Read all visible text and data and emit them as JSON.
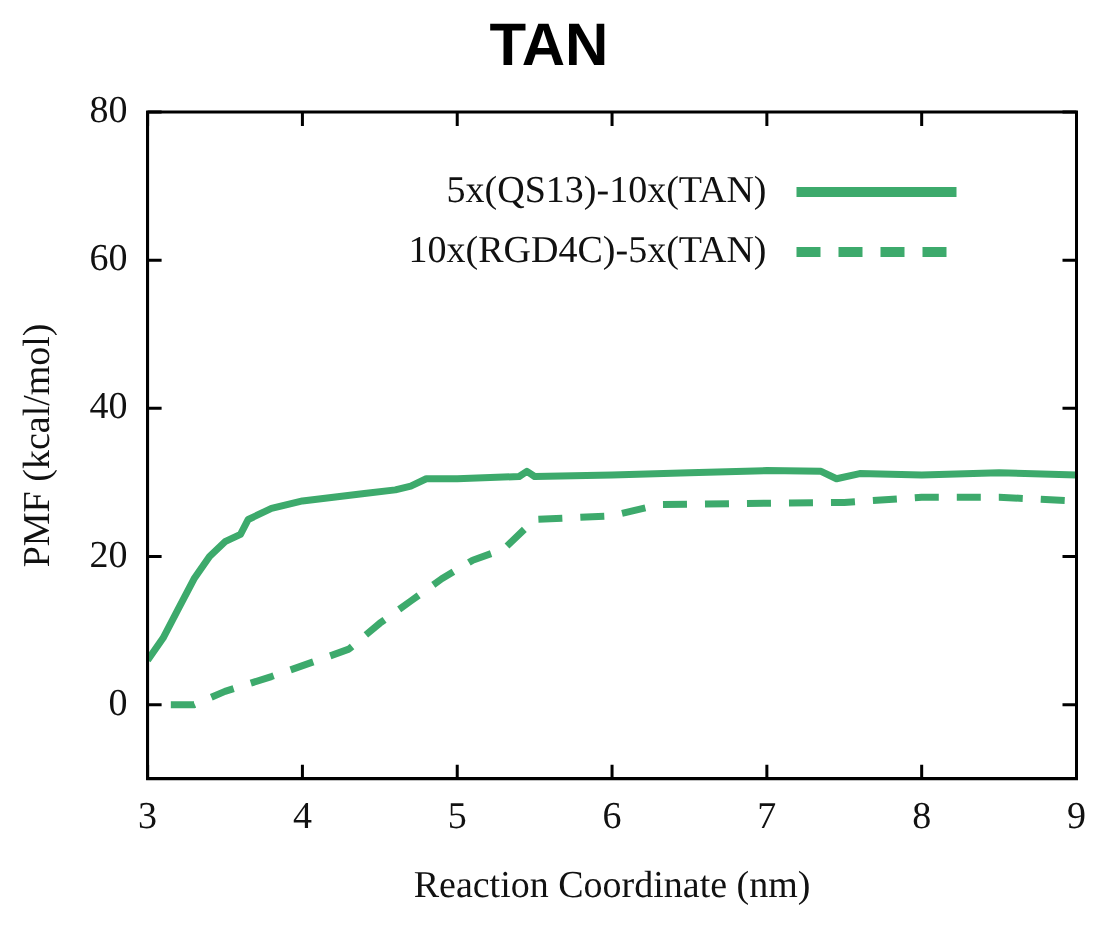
{
  "chart_data": {
    "type": "line",
    "title": "TAN",
    "xlabel": "Reaction Coordinate (nm)",
    "ylabel": "PMF (kcal/mol)",
    "xlim": [
      3,
      9
    ],
    "xticks": [
      3,
      4,
      5,
      6,
      7,
      8,
      9
    ],
    "ylim": [
      -10,
      80
    ],
    "yticks": [
      0,
      20,
      40,
      60,
      80
    ],
    "grid": false,
    "legend": "top right",
    "marker": "none",
    "series": [
      {
        "name": "5x(QS13)-10x(TAN)",
        "color": "#3daa6c",
        "line_style": "solid",
        "x": [
          3,
          3.1,
          3.2,
          3.3,
          3.4,
          3.5,
          3.6,
          3.65,
          3.8,
          4,
          4.2,
          4.4,
          4.6,
          4.7,
          4.8,
          5,
          5.4,
          5.45,
          5.5,
          6,
          6.5,
          7,
          7.35,
          7.45,
          7.6,
          8,
          8.5,
          9
        ],
        "values": [
          6,
          9,
          13,
          17,
          20,
          22,
          23,
          25,
          26.5,
          27.5,
          28,
          28.5,
          29,
          29.5,
          30.5,
          30.5,
          30.8,
          31.5,
          30.8,
          31,
          31.3,
          31.6,
          31.5,
          30.5,
          31.2,
          31,
          31.3,
          31
        ]
      },
      {
        "name": "10x(RGD4C)-5x(TAN)",
        "color": "#3daa6c",
        "line_style": "dashed",
        "x": [
          3.15,
          3.3,
          3.5,
          3.8,
          4.1,
          4.3,
          4.5,
          4.7,
          4.9,
          5.1,
          5.3,
          5.5,
          6,
          6.3,
          7,
          7.5,
          8,
          8.5,
          9
        ],
        "values": [
          0,
          0,
          1.8,
          3.8,
          6,
          7.5,
          11,
          14,
          17,
          19.5,
          21,
          25,
          25.5,
          27,
          27.2,
          27.3,
          28,
          28,
          27.5
        ]
      }
    ]
  }
}
